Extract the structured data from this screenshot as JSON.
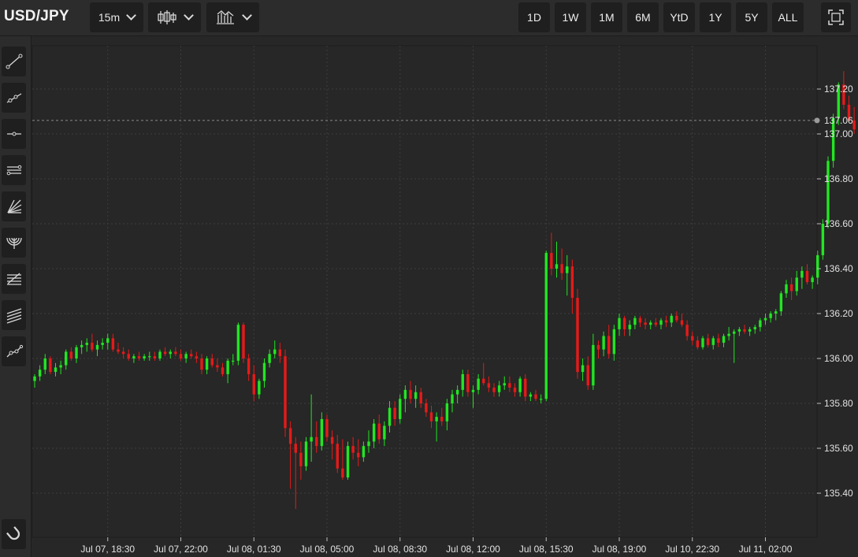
{
  "symbol": "USD/JPY",
  "interval": "15m",
  "toolbar": {
    "interval_icon": "chevron-down-icon",
    "chart_type_icon": "candlestick-icon",
    "indicators_icon": "indicators-icon",
    "fullscreen_icon": "fullscreen-icon"
  },
  "ranges": [
    "1D",
    "1W",
    "1M",
    "6M",
    "YtD",
    "1Y",
    "5Y",
    "ALL"
  ],
  "left_tools": [
    "trend-line-icon",
    "ray-icon",
    "horizontal-line-icon",
    "parallel-channel-icon",
    "fan-icon",
    "arc-icon",
    "fib-retracement-icon",
    "fib-extension-icon",
    "extended-line-icon"
  ],
  "magnet_tool": "magnet-icon",
  "colors": {
    "up": "#22e622",
    "down": "#e51a1a",
    "background": "#262726",
    "grid": "#3d3d3d",
    "price_line": "#8a8a8a"
  },
  "chart_data": {
    "type": "candlestick",
    "title": "USD/JPY",
    "interval": "15m",
    "last_price": 137.06,
    "ylim": [
      135.2,
      137.35
    ],
    "y_ticks": [
      135.4,
      135.6,
      135.8,
      136.0,
      136.2,
      136.4,
      136.6,
      136.8,
      137.0,
      137.2
    ],
    "y_tick_labels": [
      "135.40",
      "135.60",
      "135.80",
      "136.00",
      "136.20",
      "136.40",
      "136.60",
      "136.80",
      "137.00",
      "137.20"
    ],
    "x_tick_labels": [
      "Jul 07, 18:30",
      "Jul 07, 22:00",
      "Jul 08, 01:30",
      "Jul 08, 05:00",
      "Jul 08, 08:30",
      "Jul 08, 12:00",
      "Jul 08, 15:30",
      "Jul 08, 19:00",
      "Jul 10, 22:30",
      "Jul 11, 02:00"
    ],
    "x_tick_index": [
      14,
      28,
      42,
      56,
      70,
      84,
      98,
      112,
      126,
      140
    ],
    "grid": true,
    "candles": [
      [
        135.9,
        135.93,
        135.87,
        135.92
      ],
      [
        135.92,
        135.97,
        135.9,
        135.95
      ],
      [
        135.95,
        136.02,
        135.93,
        136.0
      ],
      [
        136.0,
        136.01,
        135.93,
        135.94
      ],
      [
        135.94,
        135.98,
        135.92,
        135.96
      ],
      [
        135.96,
        135.99,
        135.93,
        135.97
      ],
      [
        135.97,
        136.04,
        135.95,
        136.03
      ],
      [
        136.03,
        136.05,
        135.99,
        136.0
      ],
      [
        136.0,
        136.06,
        135.98,
        136.05
      ],
      [
        136.05,
        136.08,
        136.02,
        136.06
      ],
      [
        136.06,
        136.09,
        136.03,
        136.07
      ],
      [
        136.07,
        136.11,
        136.03,
        136.04
      ],
      [
        136.04,
        136.08,
        136.01,
        136.06
      ],
      [
        136.06,
        136.09,
        136.04,
        136.07
      ],
      [
        136.07,
        136.11,
        136.04,
        136.09
      ],
      [
        136.09,
        136.11,
        136.03,
        136.04
      ],
      [
        136.04,
        136.07,
        136.02,
        136.03
      ],
      [
        136.03,
        136.05,
        136.0,
        136.02
      ],
      [
        136.02,
        136.04,
        135.99,
        136.0
      ],
      [
        136.0,
        136.02,
        135.98,
        136.01
      ],
      [
        136.01,
        136.03,
        135.99,
        136.0
      ],
      [
        136.0,
        136.02,
        135.99,
        136.01
      ],
      [
        136.01,
        136.03,
        135.99,
        136.01
      ],
      [
        136.01,
        136.03,
        135.99,
        136.0
      ],
      [
        136.0,
        136.04,
        135.99,
        136.03
      ],
      [
        136.03,
        136.05,
        136.01,
        136.02
      ],
      [
        136.02,
        136.04,
        136.0,
        136.03
      ],
      [
        136.03,
        136.05,
        136.01,
        136.02
      ],
      [
        136.02,
        136.04,
        135.99,
        136.0
      ],
      [
        136.0,
        136.03,
        135.98,
        136.02
      ],
      [
        136.02,
        136.04,
        136.0,
        136.01
      ],
      [
        136.01,
        136.03,
        135.98,
        136.0
      ],
      [
        136.0,
        136.02,
        135.93,
        135.95
      ],
      [
        135.95,
        136.01,
        135.93,
        136.0
      ],
      [
        136.0,
        136.02,
        135.96,
        135.97
      ],
      [
        135.97,
        136.0,
        135.94,
        135.96
      ],
      [
        135.96,
        135.98,
        135.92,
        135.93
      ],
      [
        135.93,
        136.0,
        135.89,
        135.99
      ],
      [
        135.99,
        136.02,
        135.97,
        135.99
      ],
      [
        135.99,
        136.16,
        135.97,
        136.15
      ],
      [
        136.15,
        136.16,
        135.98,
        136.0
      ],
      [
        136.0,
        136.02,
        135.9,
        135.93
      ],
      [
        135.93,
        135.97,
        135.81,
        135.84
      ],
      [
        135.84,
        135.91,
        135.82,
        135.9
      ],
      [
        135.9,
        136.0,
        135.87,
        135.98
      ],
      [
        135.98,
        136.04,
        135.96,
        136.02
      ],
      [
        136.02,
        136.08,
        136.0,
        136.04
      ],
      [
        136.04,
        136.07,
        135.98,
        136.01
      ],
      [
        136.01,
        136.04,
        135.65,
        135.69
      ],
      [
        135.69,
        135.72,
        135.42,
        135.62
      ],
      [
        135.62,
        135.65,
        135.33,
        135.58
      ],
      [
        135.58,
        135.63,
        135.46,
        135.52
      ],
      [
        135.52,
        135.65,
        135.5,
        135.63
      ],
      [
        135.63,
        135.84,
        135.54,
        135.65
      ],
      [
        135.65,
        135.72,
        135.58,
        135.61
      ],
      [
        135.61,
        135.76,
        135.59,
        135.73
      ],
      [
        135.73,
        135.75,
        135.63,
        135.65
      ],
      [
        135.65,
        135.68,
        135.55,
        135.62
      ],
      [
        135.62,
        135.66,
        135.49,
        135.51
      ],
      [
        135.51,
        135.64,
        135.46,
        135.47
      ],
      [
        135.47,
        135.63,
        135.46,
        135.61
      ],
      [
        135.61,
        135.65,
        135.55,
        135.58
      ],
      [
        135.58,
        135.64,
        135.52,
        135.56
      ],
      [
        135.56,
        135.63,
        135.54,
        135.61
      ],
      [
        135.61,
        135.68,
        135.58,
        135.63
      ],
      [
        135.63,
        135.73,
        135.6,
        135.71
      ],
      [
        135.71,
        135.75,
        135.62,
        135.64
      ],
      [
        135.64,
        135.72,
        135.61,
        135.7
      ],
      [
        135.7,
        135.81,
        135.67,
        135.78
      ],
      [
        135.78,
        135.81,
        135.7,
        135.73
      ],
      [
        135.73,
        135.84,
        135.71,
        135.82
      ],
      [
        135.82,
        135.88,
        135.76,
        135.86
      ],
      [
        135.86,
        135.9,
        135.8,
        135.82
      ],
      [
        135.82,
        135.88,
        135.78,
        135.85
      ],
      [
        135.85,
        135.87,
        135.78,
        135.8
      ],
      [
        135.8,
        135.82,
        135.74,
        135.76
      ],
      [
        135.76,
        135.79,
        135.69,
        135.72
      ],
      [
        135.72,
        135.76,
        135.63,
        135.74
      ],
      [
        135.74,
        135.78,
        135.7,
        135.72
      ],
      [
        135.72,
        135.82,
        135.68,
        135.8
      ],
      [
        135.8,
        135.86,
        135.76,
        135.84
      ],
      [
        135.84,
        135.88,
        135.8,
        135.86
      ],
      [
        135.86,
        135.95,
        135.83,
        135.93
      ],
      [
        135.93,
        135.95,
        135.83,
        135.85
      ]
    ],
    "candles_part2": [
      [
        135.85,
        135.88,
        135.78,
        135.86
      ],
      [
        135.86,
        135.93,
        135.84,
        135.91
      ],
      [
        135.91,
        135.98,
        135.88,
        135.89
      ],
      [
        135.89,
        135.92,
        135.85,
        135.87
      ],
      [
        135.87,
        135.89,
        135.83,
        135.85
      ],
      [
        135.85,
        135.9,
        135.83,
        135.88
      ],
      [
        135.88,
        135.92,
        135.86,
        135.89
      ],
      [
        135.89,
        135.92,
        135.85,
        135.87
      ],
      [
        135.87,
        135.89,
        135.83,
        135.85
      ],
      [
        135.85,
        135.92,
        135.83,
        135.91
      ],
      [
        135.91,
        135.93,
        135.81,
        135.83
      ],
      [
        135.83,
        135.85,
        135.81,
        135.84
      ],
      [
        135.84,
        135.86,
        135.81,
        135.82
      ],
      [
        135.82,
        135.84,
        135.8,
        135.82
      ],
      [
        135.82,
        136.48,
        135.81,
        136.47
      ],
      [
        136.47,
        136.56,
        136.37,
        136.4
      ],
      [
        136.4,
        136.52,
        136.36,
        136.42
      ],
      [
        136.42,
        136.49,
        136.35,
        136.38
      ],
      [
        136.38,
        136.46,
        136.28,
        136.41
      ],
      [
        136.41,
        136.44,
        136.2,
        136.27
      ],
      [
        136.27,
        136.31,
        135.91,
        135.94
      ],
      [
        135.94,
        136.0,
        135.9,
        135.97
      ],
      [
        135.97,
        136.01,
        135.86,
        135.88
      ],
      [
        135.88,
        136.11,
        135.86,
        136.06
      ],
      [
        136.06,
        136.08,
        136.0,
        136.04
      ],
      [
        136.04,
        136.12,
        136.01,
        136.1
      ],
      [
        136.1,
        136.15,
        136.0,
        136.02
      ],
      [
        136.02,
        136.15,
        135.99,
        136.13
      ],
      [
        136.13,
        136.2,
        136.1,
        136.18
      ],
      [
        136.18,
        136.19,
        136.1,
        136.13
      ],
      [
        136.13,
        136.17,
        136.1,
        136.15
      ],
      [
        136.15,
        136.19,
        136.13,
        136.18
      ],
      [
        136.18,
        136.19,
        136.14,
        136.16
      ],
      [
        136.16,
        136.18,
        136.13,
        136.15
      ],
      [
        136.15,
        136.17,
        136.13,
        136.16
      ],
      [
        136.16,
        136.18,
        136.14,
        136.15
      ],
      [
        136.15,
        136.18,
        136.13,
        136.17
      ],
      [
        136.17,
        136.19,
        136.14,
        136.16
      ],
      [
        136.16,
        136.2,
        136.14,
        136.19
      ],
      [
        136.19,
        136.21,
        136.16,
        136.17
      ],
      [
        136.17,
        136.2,
        136.14,
        136.15
      ],
      [
        136.15,
        136.17,
        136.08,
        136.1
      ],
      [
        136.1,
        136.12,
        136.06,
        136.08
      ],
      [
        136.08,
        136.1,
        136.04,
        136.05
      ],
      [
        136.05,
        136.1,
        136.04,
        136.09
      ],
      [
        136.09,
        136.11,
        136.05,
        136.06
      ],
      [
        136.06,
        136.1,
        136.04,
        136.09
      ],
      [
        136.09,
        136.11,
        136.05,
        136.07
      ],
      [
        136.07,
        136.11,
        136.05,
        136.1
      ],
      [
        136.1,
        136.14,
        136.08,
        136.11
      ],
      [
        136.11,
        136.13,
        135.98,
        136.12
      ],
      [
        136.12,
        136.14,
        136.1,
        136.13
      ],
      [
        136.13,
        136.15,
        136.11,
        136.12
      ],
      [
        136.12,
        136.14,
        136.1,
        136.13
      ],
      [
        136.13,
        136.15,
        136.11,
        136.14
      ],
      [
        136.14,
        136.18,
        136.12,
        136.17
      ],
      [
        136.17,
        136.2,
        136.15,
        136.18
      ],
      [
        136.18,
        136.21,
        136.16,
        136.2
      ],
      [
        136.2,
        136.22,
        136.17,
        136.21
      ],
      [
        136.21,
        136.3,
        136.19,
        136.29
      ],
      [
        136.29,
        136.35,
        136.27,
        136.33
      ],
      [
        136.33,
        136.36,
        136.26,
        136.3
      ],
      [
        136.3,
        136.39,
        136.28,
        136.36
      ],
      [
        136.36,
        136.41,
        136.31,
        136.39
      ],
      [
        136.39,
        136.42,
        136.33,
        136.34
      ],
      [
        136.34,
        136.37,
        136.31,
        136.36
      ],
      [
        136.36,
        136.48,
        136.33,
        136.46
      ],
      [
        136.46,
        136.62,
        136.44,
        136.6
      ],
      [
        136.6,
        136.9,
        136.58,
        136.88
      ],
      [
        136.88,
        137.09,
        136.85,
        137.07
      ],
      [
        137.07,
        137.23,
        137.04,
        137.22
      ],
      [
        137.22,
        137.28,
        137.11,
        137.13
      ],
      [
        137.13,
        137.17,
        137.05,
        137.06
      ],
      [
        137.06,
        137.12,
        137.0,
        137.02
      ],
      [
        137.02,
        137.06,
        136.8,
        137.04
      ],
      [
        137.04,
        137.07,
        137.03,
        137.06
      ]
    ]
  }
}
